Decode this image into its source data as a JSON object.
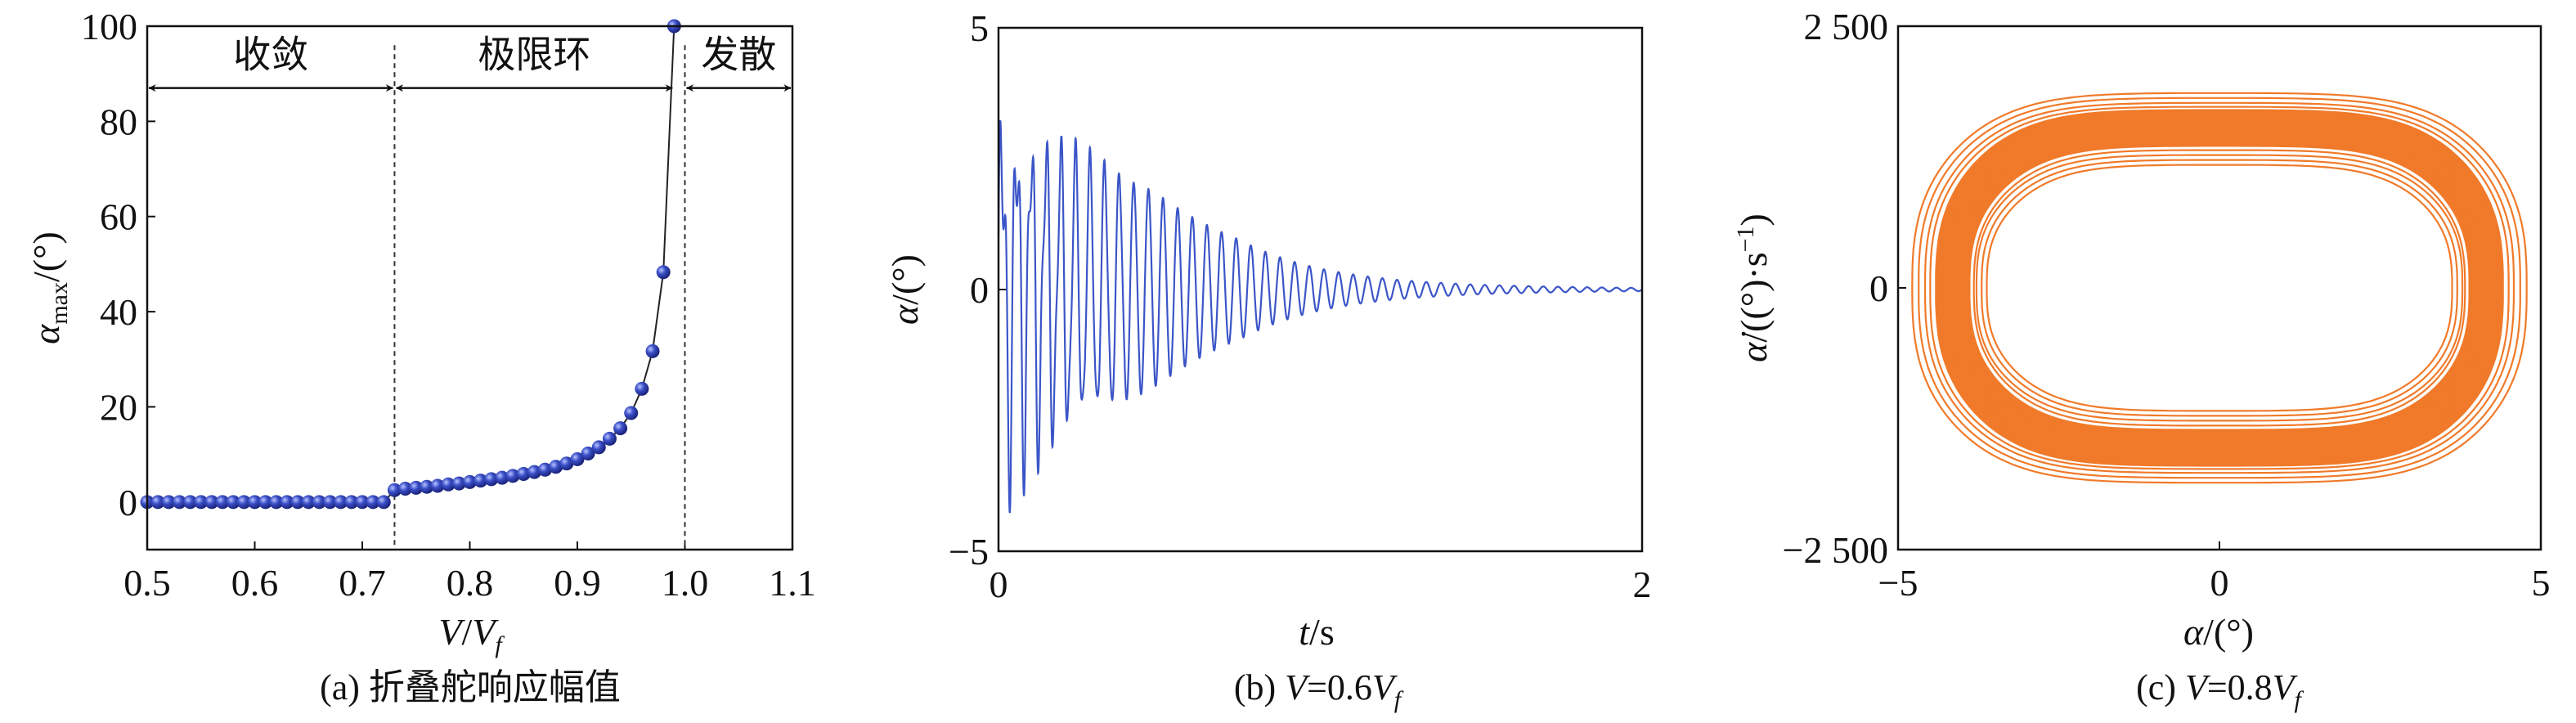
{
  "chart_data": [
    {
      "panel": "a",
      "type": "line",
      "caption": {
        "prefix": "(a) ",
        "text": "折叠舵响应幅值"
      },
      "xlabel": {
        "v": "V",
        "slash": "/",
        "v2": "V",
        "sub": "f"
      },
      "ylabel": {
        "sym": "α",
        "sub": "max",
        "unit": "/(°)"
      },
      "xlim": [
        0.5,
        1.1
      ],
      "ylim": [
        -10,
        100
      ],
      "xticks": [
        "0.5",
        "0.6",
        "0.7",
        "0.8",
        "0.9",
        "1.0",
        "1.1"
      ],
      "xtick_values": [
        0.5,
        0.6,
        0.7,
        0.8,
        0.9,
        1.0,
        1.1
      ],
      "yticks": [
        "0",
        "20",
        "40",
        "60",
        "80",
        "100"
      ],
      "ytick_values": [
        0,
        20,
        40,
        60,
        80,
        100
      ],
      "grid": false,
      "marker_color": "#3a4fc8",
      "line_color": "#222222",
      "x": [
        0.5,
        0.51,
        0.52,
        0.53,
        0.54,
        0.55,
        0.56,
        0.57,
        0.58,
        0.59,
        0.6,
        0.61,
        0.62,
        0.63,
        0.64,
        0.65,
        0.66,
        0.67,
        0.68,
        0.69,
        0.7,
        0.71,
        0.72,
        0.73,
        0.74,
        0.75,
        0.76,
        0.77,
        0.78,
        0.79,
        0.8,
        0.81,
        0.82,
        0.83,
        0.84,
        0.85,
        0.86,
        0.87,
        0.88,
        0.89,
        0.9,
        0.91,
        0.92,
        0.93,
        0.94,
        0.95,
        0.96,
        0.97,
        0.98,
        0.99
      ],
      "y": [
        0,
        0,
        0,
        0,
        0,
        0,
        0,
        0,
        0,
        0,
        0,
        0,
        0,
        0,
        0,
        0,
        0,
        0,
        0,
        0,
        0,
        0,
        0,
        2.5,
        2.8,
        3.0,
        3.2,
        3.4,
        3.7,
        3.9,
        4.2,
        4.5,
        4.8,
        5.1,
        5.5,
        5.9,
        6.3,
        6.8,
        7.4,
        8.1,
        9.0,
        10.2,
        11.5,
        13.3,
        15.5,
        18.7,
        23.8,
        31.7,
        48.3,
        100
      ],
      "boundaries": [
        0.73,
        1.0
      ],
      "regions": [
        {
          "label": "收敛",
          "from": 0.5,
          "to": 0.73
        },
        {
          "label": "极限环",
          "from": 0.73,
          "to": 0.99
        },
        {
          "label": "发散",
          "from": 1.0,
          "to": 1.1
        }
      ],
      "region_arrow_level": 87
    },
    {
      "panel": "b",
      "type": "line",
      "caption": {
        "prefix": "(b) ",
        "v": "V",
        "eq": "=0.6",
        "v2": "V",
        "sub": "f"
      },
      "xlabel": {
        "sym": "t",
        "unit": "/s"
      },
      "ylabel": {
        "sym": "α",
        "unit": "/(°)"
      },
      "xlim": [
        0,
        2
      ],
      "ylim": [
        -5,
        5
      ],
      "xticks": [
        "0",
        "2"
      ],
      "xtick_values": [
        0,
        2
      ],
      "yticks": [
        "−5",
        "0",
        "5"
      ],
      "ytick_values": [
        -5,
        0,
        5
      ],
      "grid": false,
      "line_color": "#3b55c8",
      "oscillation_frequency_hz": 22,
      "envelope": [
        [
          0,
          4.6
        ],
        [
          0.1,
          3.8
        ],
        [
          0.25,
          2.9
        ],
        [
          0.5,
          1.8
        ],
        [
          0.75,
          0.95
        ],
        [
          1.0,
          0.4
        ],
        [
          1.25,
          0.18
        ],
        [
          1.5,
          0.09
        ],
        [
          2.0,
          0.03
        ]
      ]
    },
    {
      "panel": "c",
      "type": "line",
      "caption": {
        "prefix": "(c) ",
        "v": "V",
        "eq": "=0.8",
        "v2": "V",
        "sub": "f"
      },
      "xlabel": {
        "sym": "α",
        "unit": "/(°)"
      },
      "ylabel": {
        "sym": "α̇",
        "unit": "/((°)·s",
        "sup": "−1",
        "close": ")"
      },
      "xlim": [
        -5,
        5
      ],
      "ylim": [
        -2500,
        2500
      ],
      "xticks": [
        "−5",
        "0",
        "5"
      ],
      "xtick_values": [
        -5,
        0,
        5
      ],
      "yticks": [
        "−2 500",
        "0",
        "2 500"
      ],
      "ytick_values": [
        -2500,
        0,
        2500
      ],
      "grid": false,
      "line_color": "#f07a2a",
      "orbit_rings": [
        [
          4.78,
          1980
        ],
        [
          4.68,
          1930
        ],
        [
          4.58,
          1880
        ],
        [
          4.5,
          1840
        ],
        [
          3.62,
          1250
        ],
        [
          3.7,
          1300
        ],
        [
          3.78,
          1350
        ],
        [
          3.82,
          1400
        ]
      ],
      "dense_band": {
        "alpha_amplitude": [
          3.9,
          4.4
        ],
        "rate_amplitude": [
          1450,
          1800
        ]
      }
    }
  ]
}
